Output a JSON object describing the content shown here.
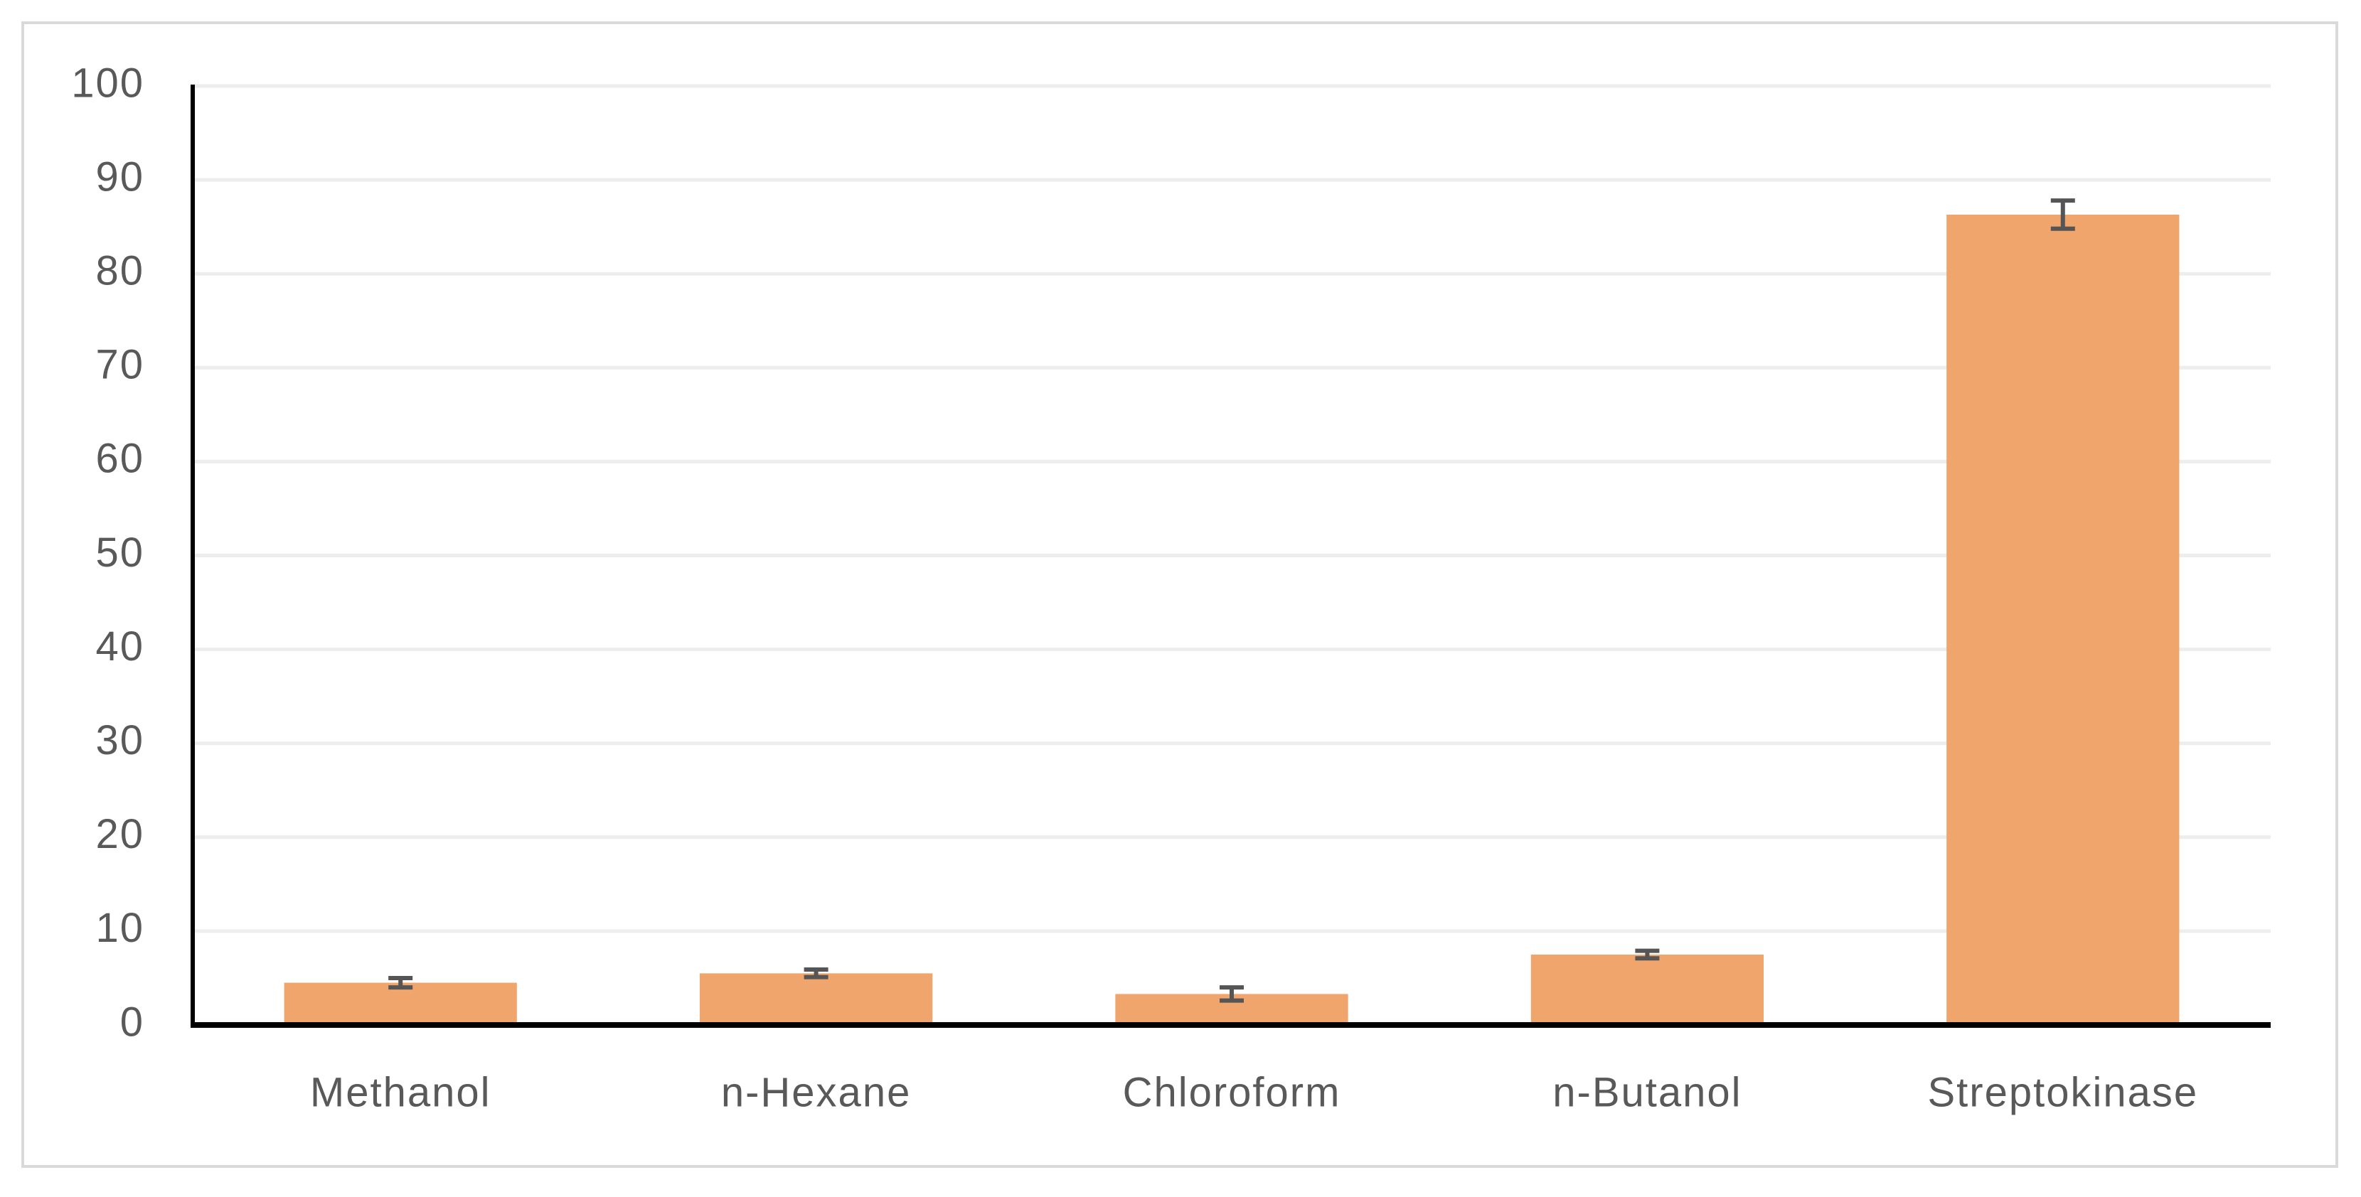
{
  "chart_data": {
    "type": "bar",
    "categories": [
      "Methanol",
      "n-Hexane",
      "Chloroform",
      "n-Butanol",
      "Streptokinase"
    ],
    "values": [
      4.5,
      5.5,
      3.3,
      7.5,
      86.3
    ],
    "errors": [
      0.5,
      0.4,
      0.7,
      0.4,
      1.5
    ],
    "color": "#f0a56c",
    "ylim": [
      0,
      100
    ],
    "yticks": [
      0,
      10,
      20,
      30,
      40,
      50,
      60,
      70,
      80,
      90,
      100
    ],
    "grid": true
  }
}
